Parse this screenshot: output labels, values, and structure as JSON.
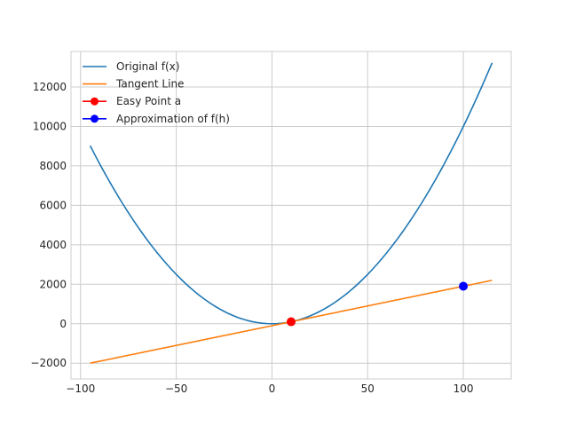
{
  "chart_data": {
    "type": "line",
    "title": "",
    "xlabel": "",
    "ylabel": "",
    "xlim": [
      -105,
      125
    ],
    "ylim": [
      -2800,
      13800
    ],
    "xticks": [
      -100,
      -50,
      0,
      50,
      100
    ],
    "xtick_labels": [
      "−100",
      "−50",
      "0",
      "50",
      "100"
    ],
    "yticks": [
      -2000,
      0,
      2000,
      4000,
      6000,
      8000,
      10000,
      12000
    ],
    "ytick_labels": [
      "−2000",
      "0",
      "2000",
      "4000",
      "6000",
      "8000",
      "10000",
      "12000"
    ],
    "grid": true,
    "legend_position": "upper-left",
    "series": [
      {
        "name": "Original f(x)",
        "kind": "line",
        "color": "#1f77b4",
        "function": "x^2",
        "x_range": [
          -95,
          115
        ],
        "sample_step": 2.5
      },
      {
        "name": "Tangent Line",
        "kind": "line",
        "color": "#ff7f0e",
        "x": [
          -95,
          115
        ],
        "y": [
          -2000,
          2200
        ]
      },
      {
        "name": "Easy Point a",
        "kind": "point",
        "color": "#ff0000",
        "x": [
          10
        ],
        "y": [
          100
        ]
      },
      {
        "name": "Approximation of f(h)",
        "kind": "point",
        "color": "#0000ff",
        "x": [
          100
        ],
        "y": [
          1900
        ]
      }
    ]
  }
}
